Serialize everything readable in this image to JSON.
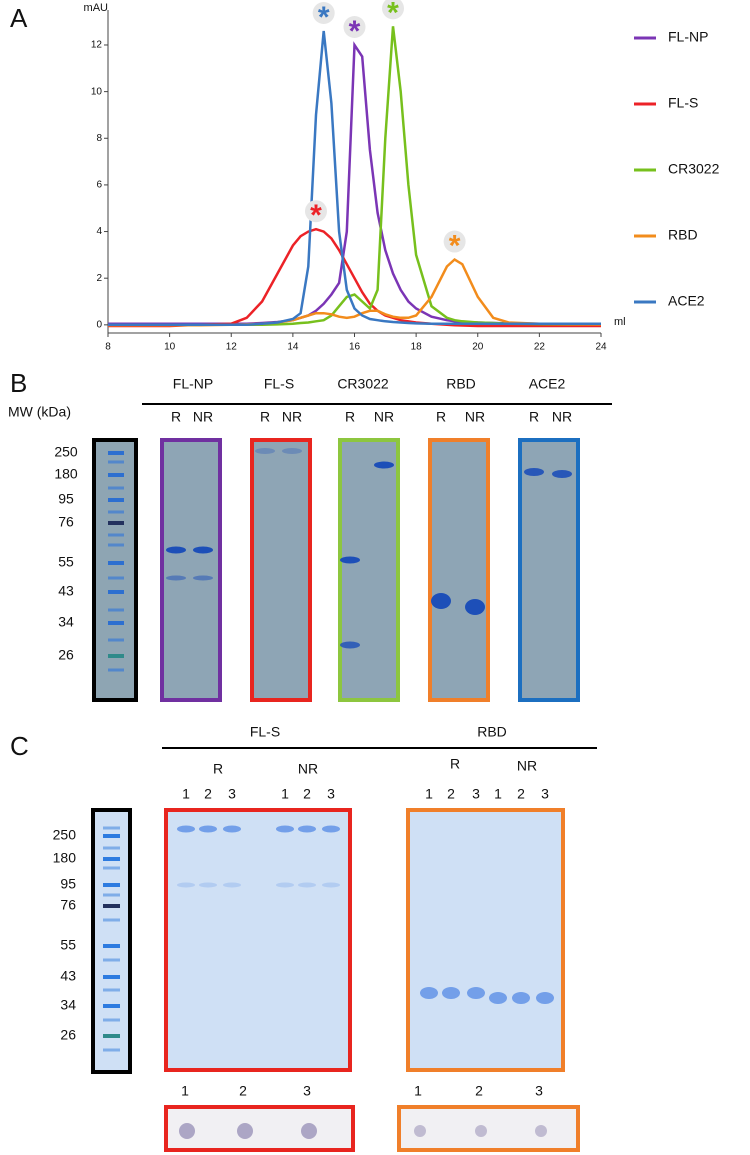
{
  "chart_data": {
    "type": "line",
    "y_label": "mAU",
    "x_label": "ml",
    "xlim": [
      8,
      24
    ],
    "xticks": [
      8,
      10,
      12,
      14,
      16,
      18,
      20,
      22,
      24
    ],
    "ylim": [
      -0.35,
      13.5
    ],
    "yticks": [
      0,
      2,
      4,
      6,
      8,
      10,
      12
    ],
    "grid": false,
    "legend": "right",
    "x": [
      8,
      9,
      10,
      11,
      12,
      12.5,
      13,
      13.5,
      14,
      14.25,
      14.5,
      14.75,
      15,
      15.25,
      15.5,
      15.75,
      16,
      16.25,
      16.5,
      16.75,
      17,
      17.25,
      17.5,
      17.75,
      18,
      18.5,
      19,
      19.25,
      19.5,
      20,
      20.5,
      21,
      22,
      23,
      24
    ],
    "series": [
      {
        "name": "FL-NP",
        "color": "#7b35b5",
        "marker": "*",
        "values": [
          0.05,
          0.05,
          0.05,
          0.05,
          0.05,
          0.05,
          0.08,
          0.12,
          0.2,
          0.3,
          0.4,
          0.6,
          0.9,
          1.3,
          1.8,
          4,
          12,
          11.5,
          7.5,
          4.8,
          3.2,
          2.2,
          1.5,
          1,
          0.7,
          0.35,
          0.2,
          0.15,
          0.12,
          0.1,
          0.08,
          0.06,
          0.05,
          0.05,
          0.05
        ]
      },
      {
        "name": "FL-S",
        "color": "#ec2227",
        "marker": "*",
        "values": [
          -0.05,
          -0.05,
          -0.05,
          0,
          0.05,
          0.3,
          1,
          2.2,
          3.4,
          3.8,
          4,
          4.1,
          4,
          3.7,
          3.2,
          2.6,
          2,
          1.4,
          0.9,
          0.6,
          0.4,
          0.3,
          0.2,
          0.15,
          0.1,
          0.05,
          0,
          -0.02,
          -0.03,
          -0.05,
          -0.05,
          -0.05,
          -0.05,
          -0.05,
          -0.05
        ]
      },
      {
        "name": "CR3022",
        "color": "#77c01d",
        "marker": "*",
        "values": [
          0,
          0,
          0,
          0,
          0,
          0,
          0,
          0.02,
          0.05,
          0.08,
          0.1,
          0.15,
          0.2,
          0.4,
          0.8,
          1.2,
          1.3,
          1,
          0.7,
          1.5,
          8,
          12.8,
          10,
          6,
          3,
          0.8,
          0.3,
          0.2,
          0.15,
          0.1,
          0.08,
          0.05,
          0.03,
          0.02,
          0.02
        ]
      },
      {
        "name": "RBD",
        "color": "#f28c1c",
        "marker": "*",
        "values": [
          -0.02,
          -0.02,
          -0.02,
          -0.02,
          0,
          0.02,
          0.05,
          0.1,
          0.2,
          0.3,
          0.4,
          0.5,
          0.5,
          0.45,
          0.35,
          0.3,
          0.35,
          0.5,
          0.6,
          0.6,
          0.45,
          0.35,
          0.3,
          0.3,
          0.4,
          1.2,
          2.5,
          2.8,
          2.6,
          1.2,
          0.3,
          0.1,
          0.05,
          0.03,
          0.02
        ]
      },
      {
        "name": "ACE2",
        "color": "#3a78c2",
        "marker": "*",
        "values": [
          0,
          0,
          0,
          0,
          0,
          0,
          0.05,
          0.1,
          0.25,
          0.5,
          2.5,
          9,
          12.6,
          9.5,
          4,
          1.5,
          0.7,
          0.4,
          0.25,
          0.2,
          0.15,
          0.12,
          0.1,
          0.08,
          0.06,
          0.05,
          0.05,
          0.05,
          0.05,
          0.05,
          0.05,
          0.05,
          0.05,
          0.05,
          0.05
        ]
      }
    ]
  },
  "panel_labels": [
    "A",
    "B",
    "C"
  ],
  "panel_b": {
    "mw_label": "MW (kDa)",
    "ladder": [
      250,
      180,
      95,
      76,
      55,
      43,
      34,
      26
    ],
    "groups": [
      {
        "name": "FL-NP",
        "color": "#7030a0",
        "lanes": [
          "R",
          "NR"
        ]
      },
      {
        "name": "FL-S",
        "color": "#e8251f",
        "lanes": [
          "R",
          "NR"
        ]
      },
      {
        "name": "CR3022",
        "color": "#8dc63f",
        "lanes": [
          "R",
          "NR"
        ]
      },
      {
        "name": "RBD",
        "color": "#f07f2a",
        "lanes": [
          "R",
          "NR"
        ]
      },
      {
        "name": "ACE2",
        "color": "#1c6fc0",
        "lanes": [
          "R",
          "NR"
        ]
      }
    ]
  },
  "panel_c": {
    "ladder": [
      250,
      180,
      95,
      76,
      55,
      43,
      34,
      26
    ],
    "groups": [
      {
        "name": "FL-S",
        "color": "#e8251f",
        "conditions": [
          {
            "name": "R",
            "lanes": [
              "1",
              "2",
              "3"
            ]
          },
          {
            "name": "NR",
            "lanes": [
              "1",
              "2",
              "3"
            ]
          }
        ],
        "blot": [
          "1",
          "2",
          "3"
        ]
      },
      {
        "name": "RBD",
        "color": "#f07f2a",
        "conditions": [
          {
            "name": "R",
            "lanes": [
              "1",
              "2",
              "3"
            ]
          },
          {
            "name": "NR",
            "lanes": [
              "1",
              "2",
              "3"
            ]
          }
        ],
        "blot": [
          "1",
          "2",
          "3"
        ]
      }
    ]
  }
}
